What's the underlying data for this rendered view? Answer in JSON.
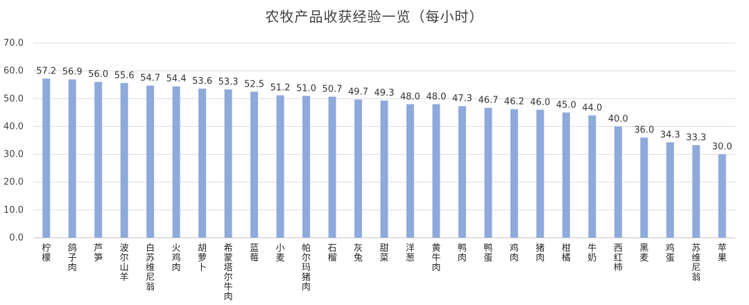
{
  "chart_data": {
    "type": "bar",
    "title": "农牧产品收获经验一览（每小时）",
    "xlabel": "",
    "ylabel": "",
    "ylim": [
      0,
      70
    ],
    "yticks": [
      "0.0",
      "10.0",
      "20.0",
      "30.0",
      "40.0",
      "50.0",
      "60.0",
      "70.0"
    ],
    "grid": true,
    "bar_color": "#8eaadb",
    "categories": [
      "柠檬",
      "鸽子肉",
      "芦笋",
      "波尔山羊",
      "白苏维尼翁",
      "火鸡肉",
      "胡萝卜",
      "希蒙塔尔牛肉",
      "蓝莓",
      "小麦",
      "帕尔玛猪肉",
      "石榴",
      "灰兔",
      "甜菜",
      "洋葱",
      "黄牛肉",
      "鸭肉",
      "鸭蛋",
      "鸡肉",
      "猪肉",
      "柑橘",
      "牛奶",
      "西红柿",
      "黑麦",
      "鸡蛋",
      "苏维尼翁",
      "苹果"
    ],
    "values": [
      57.2,
      56.9,
      56.0,
      55.6,
      54.7,
      54.4,
      53.6,
      53.3,
      52.5,
      51.2,
      51.0,
      50.7,
      49.7,
      49.3,
      48.0,
      48.0,
      47.3,
      46.7,
      46.2,
      46.0,
      45.0,
      44.0,
      40.0,
      36.0,
      34.3,
      33.3,
      30.0
    ],
    "value_labels": [
      "57.2",
      "56.9",
      "56.0",
      "55.6",
      "54.7",
      "54.4",
      "53.6",
      "53.3",
      "52.5",
      "51.2",
      "51.0",
      "50.7",
      "49.7",
      "49.3",
      "48.0",
      "48.0",
      "47.3",
      "46.7",
      "46.2",
      "46.0",
      "45.0",
      "44.0",
      "40.0",
      "36.0",
      "34.3",
      "33.3",
      "30.0"
    ]
  }
}
